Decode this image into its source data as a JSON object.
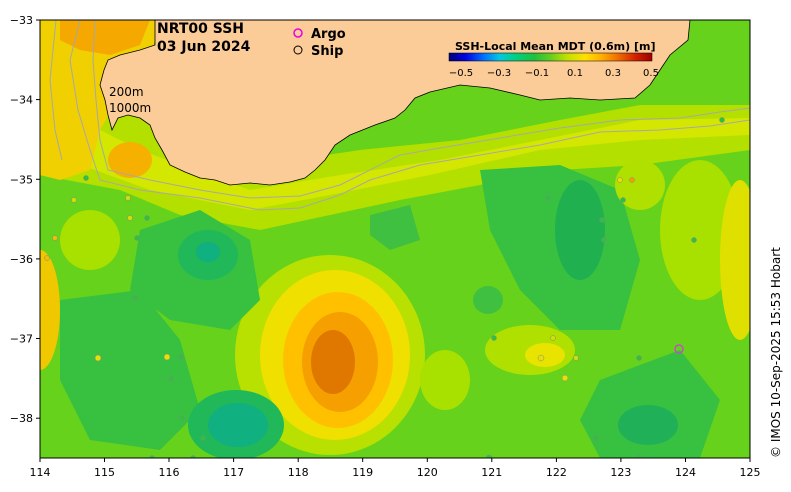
{
  "title": {
    "line1": "NRT00 SSH",
    "line2": "03 Jun 2024"
  },
  "legend": {
    "argo": "Argo",
    "ship": "Ship",
    "argo_color": "#e600e6"
  },
  "colorbar": {
    "title": "SSH-Local Mean MDT (0.6m) [m]",
    "ticks": [
      "−0.5",
      "−0.3",
      "−0.1",
      "0.1",
      "0.3",
      "0.5"
    ],
    "colors": [
      "#00007a",
      "#0000e0",
      "#0070ff",
      "#00c8e0",
      "#00d080",
      "#20c040",
      "#60d020",
      "#c0e000",
      "#ffe000",
      "#ffb000",
      "#f07000",
      "#d02000",
      "#a00000"
    ]
  },
  "contours": {
    "shallow": "200m",
    "deep": "1000m"
  },
  "credit": "© IMOS 10-Sep-2025 15:53 Hobart",
  "axes": {
    "x_ticks": [
      "114",
      "115",
      "116",
      "117",
      "118",
      "119",
      "120",
      "121",
      "122",
      "123",
      "124",
      "125"
    ],
    "y_ticks": [
      "−33",
      "−34",
      "−35",
      "−36",
      "−37",
      "−38"
    ],
    "lon_range": [
      114,
      125
    ],
    "lat_range": [
      -38.5,
      -33
    ]
  },
  "colors": {
    "land": "#fbcb98",
    "base_field": "#66d21c",
    "coast_line": "#000000",
    "isobath": "#a8a8a8"
  }
}
